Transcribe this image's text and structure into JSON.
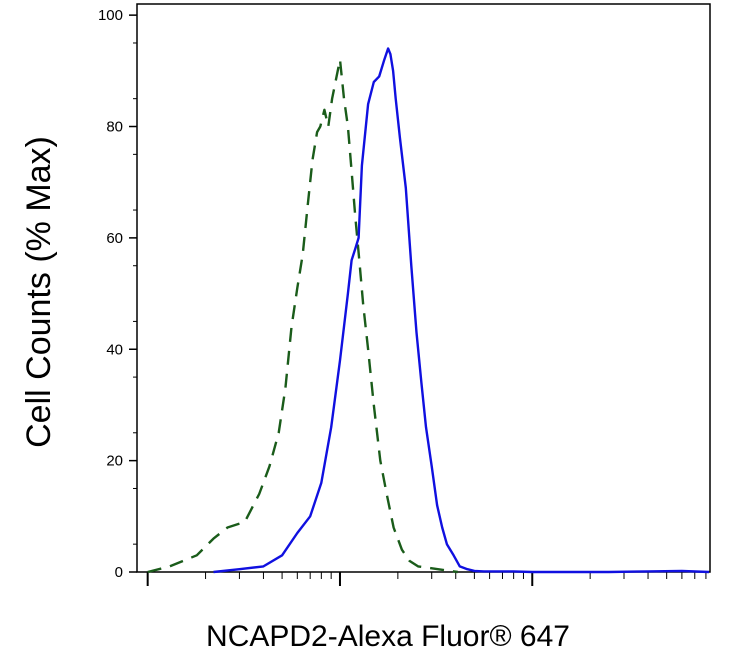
{
  "chart_data": {
    "type": "line",
    "xlabel": "NCAPD2-Alexa Fluor® 647",
    "ylabel": "Cell Counts (% Max)",
    "xscale": "log",
    "xlim": [
      0.88,
      840
    ],
    "ylim": [
      0,
      102
    ],
    "yticks": [
      0,
      20,
      40,
      60,
      80,
      100
    ],
    "ytick_labels": [
      "0",
      "20",
      "40",
      "60",
      "80",
      "100"
    ],
    "legend": "none",
    "grid": false,
    "series": [
      {
        "style": "dashed",
        "color": "#1a5c1a",
        "x": [
          1.0,
          1.3,
          1.8,
          2.2,
          2.6,
          3.2,
          3.8,
          4.3,
          4.8,
          5.2,
          5.6,
          6.0,
          6.4,
          6.8,
          7.2,
          7.6,
          7.9,
          8.3,
          8.7,
          9.1,
          9.6,
          10.0,
          10.5,
          11.0,
          11.5,
          12.0,
          12.6,
          13.2,
          14.0,
          15.0,
          16.2,
          17.5,
          19.0,
          21.0,
          23.0,
          25.5,
          28.0,
          31.0,
          34.0,
          37.0,
          41.0
        ],
        "values": [
          0,
          1,
          3,
          6,
          8,
          9,
          14,
          19,
          25,
          33,
          44,
          51,
          57,
          66,
          74,
          79,
          80,
          83,
          80,
          85,
          89,
          92,
          85,
          80,
          72,
          64,
          56,
          48,
          40,
          30,
          20,
          14,
          8,
          4,
          2,
          1,
          0.8,
          0.6,
          0.4,
          0.2,
          0
        ]
      },
      {
        "style": "solid",
        "color": "#1010e0",
        "x": [
          2.2,
          3.0,
          4.0,
          5.0,
          6.0,
          7.0,
          8.0,
          9.0,
          10.0,
          11.0,
          11.5,
          12.0,
          12.5,
          13.0,
          14.0,
          15.0,
          16.0,
          17.0,
          17.8,
          18.3,
          18.9,
          19.5,
          20.5,
          22.0,
          23.5,
          25.0,
          26.5,
          28.0,
          30.0,
          32.0,
          34.0,
          36.0,
          39.0,
          42.0,
          46.0,
          50.0,
          56.0,
          65.0,
          80.0,
          100.0,
          150.0,
          250.0,
          400.0,
          600.0,
          830.0
        ],
        "values": [
          0,
          0.5,
          1,
          3,
          7,
          10,
          16,
          26,
          38,
          50,
          56,
          58,
          60,
          73,
          84,
          88,
          89,
          92,
          94,
          93,
          90,
          85,
          78,
          69,
          55,
          43,
          34,
          26,
          19,
          12,
          8,
          5,
          3,
          1,
          0.5,
          0.2,
          0.1,
          0.1,
          0.1,
          0,
          0,
          0,
          0.1,
          0.2,
          0
        ]
      }
    ]
  }
}
